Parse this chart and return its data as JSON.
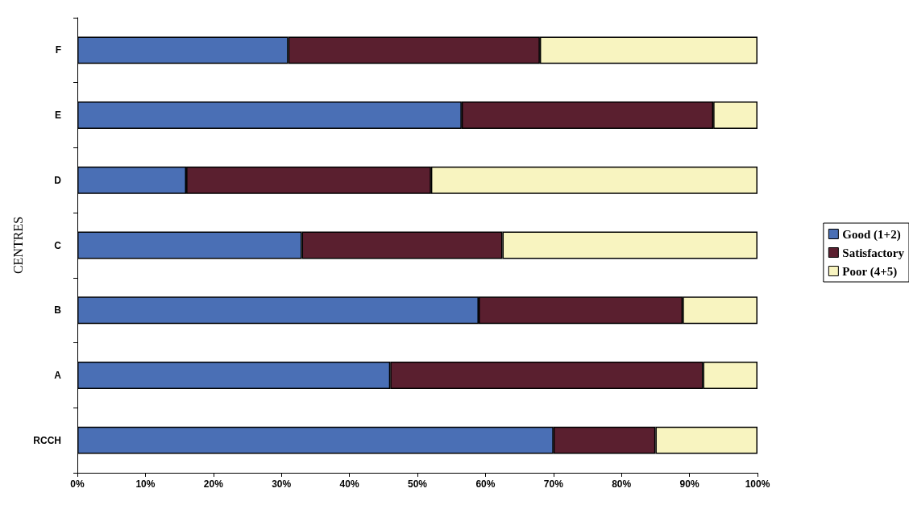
{
  "chart_data": {
    "type": "bar",
    "orientation": "horizontal",
    "stacked": true,
    "ylabel": "CENTRES",
    "categories": [
      "F",
      "E",
      "D",
      "C",
      "B",
      "A",
      "RCCH"
    ],
    "series": [
      {
        "name": "Good (1+2)",
        "color": "#4a6fb5",
        "values": [
          31,
          56.5,
          16,
          33,
          59,
          46,
          70
        ]
      },
      {
        "name": "Satisfactory",
        "color": "#5a1f2f",
        "values": [
          37,
          37,
          36,
          29.5,
          30,
          46,
          15
        ]
      },
      {
        "name": "Poor (4+5)",
        "color": "#f8f4c0",
        "values": [
          32,
          6.5,
          48,
          37.5,
          11,
          8,
          15
        ]
      }
    ],
    "xlim": [
      0,
      100
    ],
    "xticks": [
      {
        "value": 0,
        "label": "0%"
      },
      {
        "value": 10,
        "label": "10%"
      },
      {
        "value": 20,
        "label": "20%"
      },
      {
        "value": 30,
        "label": "30%"
      },
      {
        "value": 40,
        "label": "40%"
      },
      {
        "value": 50,
        "label": "50%"
      },
      {
        "value": 60,
        "label": "60%"
      },
      {
        "value": 70,
        "label": "70%"
      },
      {
        "value": 80,
        "label": "80%"
      },
      {
        "value": 90,
        "label": "90%"
      },
      {
        "value": 100,
        "label": "100%"
      }
    ],
    "grid": false,
    "legend": "right"
  }
}
